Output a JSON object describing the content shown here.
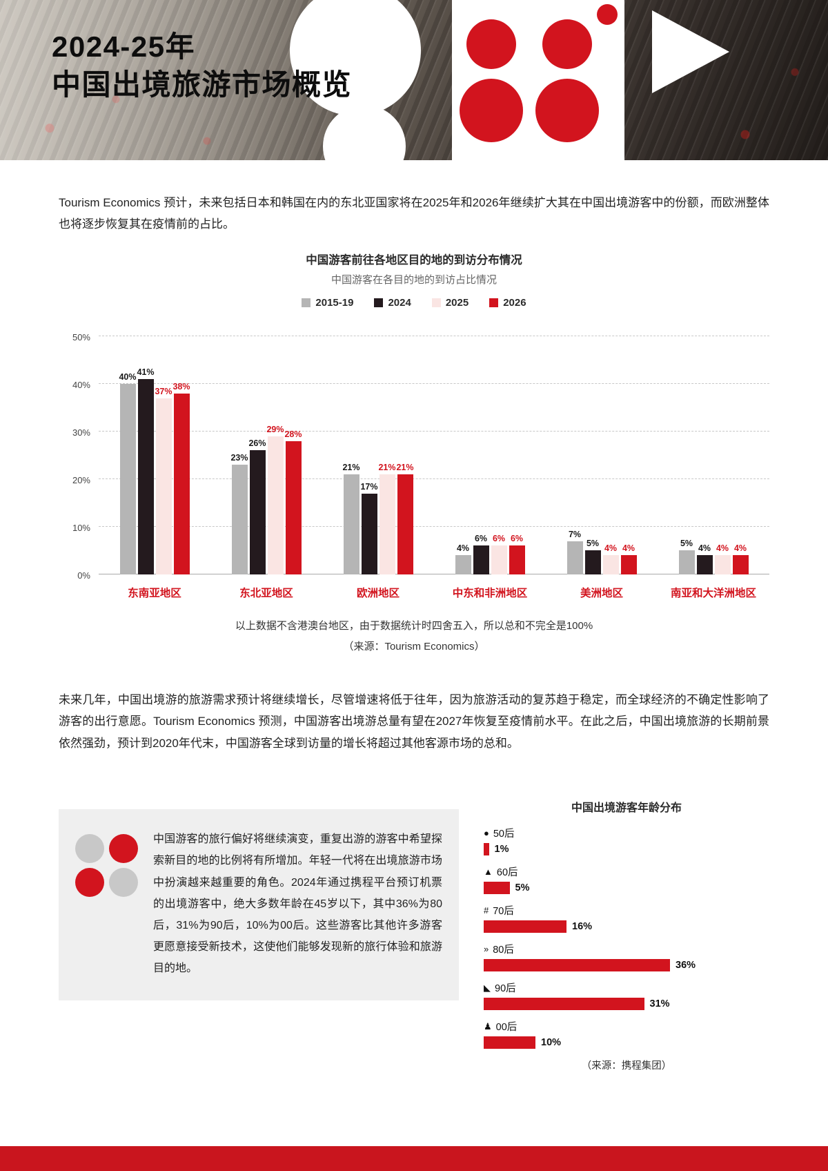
{
  "header": {
    "title_line1": "2024-25年",
    "title_line2": "中国出境旅游市场概览"
  },
  "intro_paragraph": "Tourism Economics 预计，未来包括日本和韩国在内的东北亚国家将在2025年和2026年继续扩大其在中国出境游客中的份额，而欧洲整体也将逐步恢复其在疫情前的占比。",
  "chart1": {
    "title": "中国游客前往各地区目的地的到访分布情况",
    "subtitle": "中国游客在各目的地的到访占比情况",
    "note": "以上数据不含港澳台地区，由于数据统计时四舍五入，所以总和不完全是100%",
    "source": "（来源：Tourism Economics）"
  },
  "paragraph2": "未来几年，中国出境游的旅游需求预计将继续增长，尽管增速将低于往年，因为旅游活动的复苏趋于稳定，而全球经济的不确定性影响了游客的出行意愿。Tourism Economics 预测，中国游客出境游总量有望在2027年恢复至疫情前水平。在此之后，中国出境旅游的长期前景依然强劲，预计到2020年代末，中国游客全球到访量的增长将超过其他客源市场的总和。",
  "info_box": {
    "text": "中国游客的旅行偏好将继续演变，重复出游的游客中希望探索新目的地的比例将有所增加。年轻一代将在出境旅游市场中扮演越来越重要的角色。2024年通过携程平台预订机票的出境游客中，绝大多数年龄在45岁以下，其中36%为80后，31%为90后，10%为00后。这些游客比其他许多游客更愿意接受新技术，这使他们能够发现新的旅行体验和旅游目的地。"
  },
  "chart2": {
    "title": "中国出境游客年龄分布",
    "source": "（来源：携程集团）"
  },
  "colors": {
    "accent_red": "#d2141e",
    "bar_gray": "#b5b5b5",
    "bar_dark": "#241a1e",
    "bar_pink": "#fae5e3",
    "footer_red": "#c9151e",
    "logo_gray": "#c8c8c8"
  },
  "chart_data": [
    {
      "type": "bar",
      "title": "中国游客前往各地区目的地的到访分布情况",
      "subtitle": "中国游客在各目的地的到访占比情况",
      "categories": [
        "东南亚地区",
        "东北亚地区",
        "欧洲地区",
        "中东和非洲地区",
        "美洲地区",
        "南亚和大洋洲地区"
      ],
      "series": [
        {
          "name": "2015-19",
          "color": "#b5b5b5",
          "label_color": "#1a1a1a",
          "values": [
            40,
            23,
            21,
            4,
            7,
            5
          ]
        },
        {
          "name": "2024",
          "color": "#241a1e",
          "label_color": "#1a1a1a",
          "values": [
            41,
            26,
            17,
            6,
            5,
            4
          ]
        },
        {
          "name": "2025",
          "color": "#fae5e3",
          "label_color": "#d2141e",
          "values": [
            37,
            29,
            21,
            6,
            4,
            4
          ]
        },
        {
          "name": "2026",
          "color": "#d2141e",
          "label_color": "#d2141e",
          "values": [
            38,
            28,
            21,
            6,
            4,
            4
          ]
        }
      ],
      "ylim": [
        0,
        50
      ],
      "yticks": [
        0,
        10,
        20,
        30,
        40,
        50
      ],
      "grid": true,
      "legend_position": "top",
      "note": "以上数据不含港澳台地区，由于数据统计时四舍五入，所以总和不完全是100%",
      "source": "（来源：Tourism Economics）"
    },
    {
      "type": "bar",
      "orientation": "horizontal",
      "title": "中国出境游客年龄分布",
      "categories": [
        "50后",
        "60后",
        "70后",
        "80后",
        "90后",
        "00后"
      ],
      "icons": [
        "●",
        "▲",
        "#",
        "»",
        "◣",
        "♟"
      ],
      "values": [
        1,
        5,
        16,
        36,
        31,
        10
      ],
      "bar_color": "#d2141e",
      "xlim": [
        0,
        40
      ],
      "source": "（来源：携程集团）"
    }
  ]
}
